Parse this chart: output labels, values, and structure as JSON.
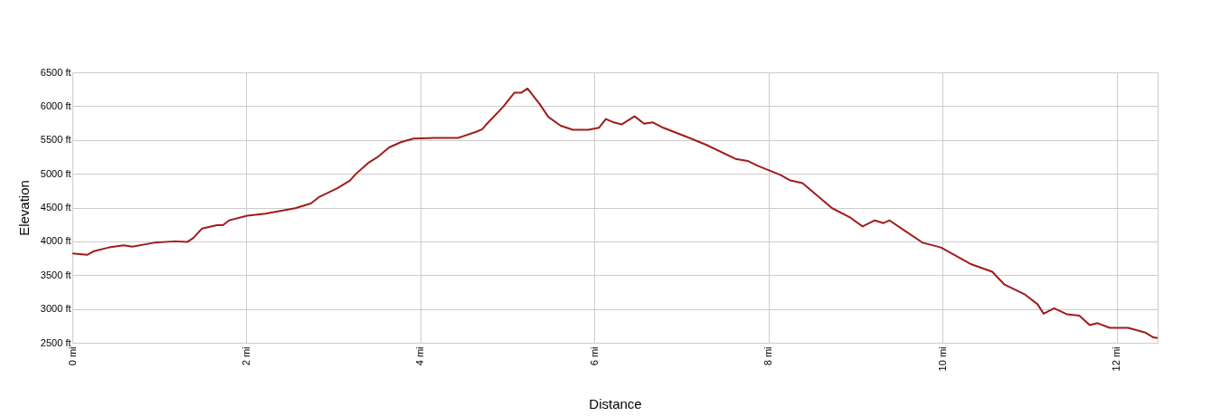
{
  "chart_data": {
    "type": "line",
    "xlabel": "Distance",
    "ylabel": "Elevation",
    "x": [
      0,
      0.17,
      0.24,
      0.42,
      0.59,
      0.69,
      0.94,
      1.18,
      1.32,
      1.39,
      1.49,
      1.66,
      1.73,
      1.8,
      2.01,
      2.22,
      2.56,
      2.74,
      2.84,
      3.05,
      3.19,
      3.26,
      3.4,
      3.5,
      3.64,
      3.78,
      3.92,
      4.16,
      4.43,
      4.64,
      4.71,
      4.75,
      4.95,
      5.08,
      5.16,
      5.23,
      5.37,
      5.47,
      5.61,
      5.75,
      5.93,
      6.05,
      6.13,
      6.22,
      6.31,
      6.46,
      6.57,
      6.67,
      6.79,
      7.07,
      7.28,
      7.62,
      7.76,
      7.87,
      8.14,
      8.25,
      8.39,
      8.73,
      8.94,
      9.08,
      9.22,
      9.32,
      9.39,
      9.56,
      9.77,
      9.98,
      10.19,
      10.33,
      10.57,
      10.71,
      10.95,
      11.09,
      11.16,
      11.28,
      11.43,
      11.57,
      11.69,
      11.78,
      11.92,
      12.13,
      12.33,
      12.42,
      12.47
    ],
    "series": [
      {
        "color": "#a01c1c",
        "values": [
          3820,
          3800,
          3850,
          3910,
          3940,
          3920,
          3980,
          4000,
          3990,
          4050,
          4190,
          4240,
          4240,
          4310,
          4380,
          4410,
          4490,
          4560,
          4660,
          4790,
          4900,
          5000,
          5160,
          5240,
          5390,
          5470,
          5520,
          5530,
          5530,
          5620,
          5660,
          5720,
          5990,
          6200,
          6200,
          6260,
          6030,
          5840,
          5710,
          5650,
          5650,
          5680,
          5810,
          5760,
          5730,
          5850,
          5740,
          5760,
          5680,
          5540,
          5430,
          5220,
          5190,
          5120,
          4980,
          4900,
          4860,
          4490,
          4350,
          4220,
          4310,
          4270,
          4310,
          4160,
          3980,
          3910,
          3760,
          3660,
          3550,
          3360,
          3210,
          3070,
          2930,
          3010,
          2920,
          2900,
          2760,
          2790,
          2720,
          2720,
          2650,
          2580,
          2570
        ]
      }
    ],
    "xlim": [
      0,
      12.47
    ],
    "xticks": [
      {
        "value": 0,
        "label": "0 mi"
      },
      {
        "value": 2,
        "label": "2 mi"
      },
      {
        "value": 4,
        "label": "4 mi"
      },
      {
        "value": 6,
        "label": "6 mi"
      },
      {
        "value": 8,
        "label": "8 mi"
      },
      {
        "value": 10,
        "label": "10 mi"
      },
      {
        "value": 12,
        "label": "12 mi"
      }
    ],
    "ylim": [
      2500,
      6500
    ],
    "yticks": [
      {
        "value": 2500,
        "label": "2500 ft"
      },
      {
        "value": 3000,
        "label": "3000 ft"
      },
      {
        "value": 3500,
        "label": "3500 ft"
      },
      {
        "value": 4000,
        "label": "4000 ft"
      },
      {
        "value": 4500,
        "label": "4500 ft"
      },
      {
        "value": 5000,
        "label": "5000 ft"
      },
      {
        "value": 5500,
        "label": "5500 ft"
      },
      {
        "value": 6000,
        "label": "6000 ft"
      },
      {
        "value": 6500,
        "label": "6500 ft"
      }
    ],
    "grid": true,
    "marker": "none",
    "line_style": "solid"
  }
}
